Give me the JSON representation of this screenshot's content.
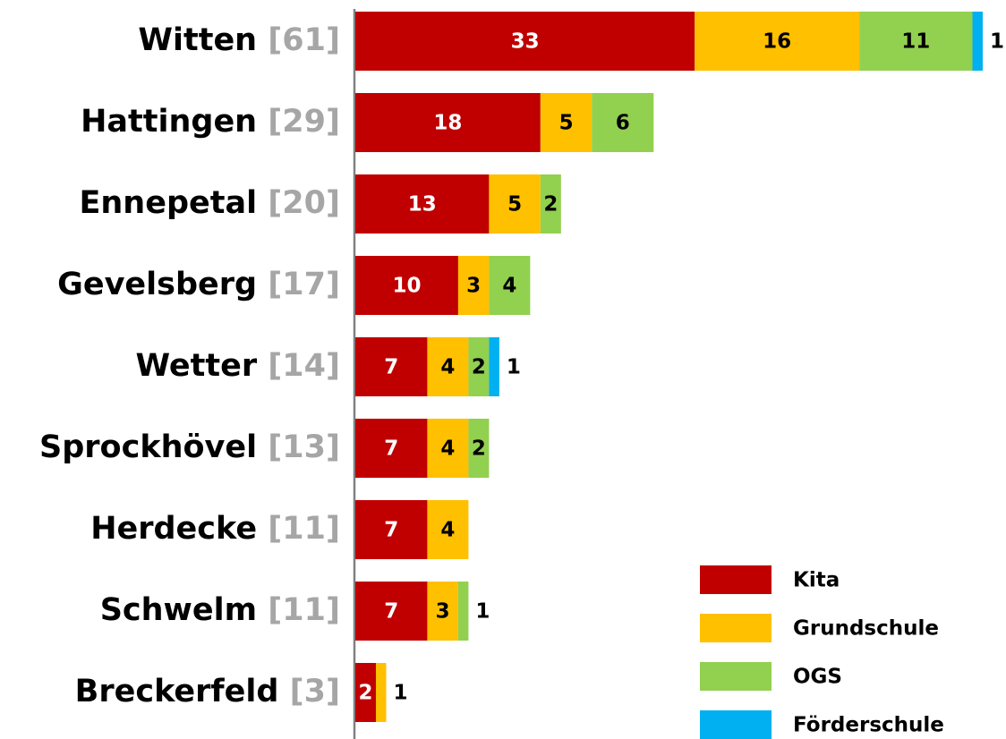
{
  "chart_data": {
    "type": "bar",
    "orientation": "horizontal",
    "stacked": true,
    "categories": [
      "Witten",
      "Hattingen",
      "Ennepetal",
      "Gevelsberg",
      "Wetter",
      "Sprockhövel",
      "Herdecke",
      "Schwelm",
      "Breckerfeld"
    ],
    "category_totals": [
      "[61]",
      "[29]",
      "[20]",
      "[17]",
      "[14]",
      "[13]",
      "[11]",
      "[11]",
      "[3]"
    ],
    "series": [
      {
        "name": "Kita",
        "color": "#c00000",
        "label_color": "#ffffff",
        "values": [
          33,
          18,
          13,
          10,
          7,
          7,
          7,
          7,
          2
        ]
      },
      {
        "name": "Grundschule",
        "color": "#ffc000",
        "label_color": "#000000",
        "values": [
          16,
          5,
          5,
          3,
          4,
          4,
          4,
          3,
          1
        ]
      },
      {
        "name": "OGS",
        "color": "#92d050",
        "label_color": "#000000",
        "values": [
          11,
          6,
          2,
          4,
          2,
          2,
          null,
          1,
          null
        ]
      },
      {
        "name": "Förderschule",
        "color": "#00b0f0",
        "label_color": "#000000",
        "values": [
          1,
          null,
          null,
          null,
          1,
          null,
          null,
          null,
          null
        ]
      }
    ],
    "xlim": [
      0,
      61
    ],
    "legend": "lower right"
  }
}
